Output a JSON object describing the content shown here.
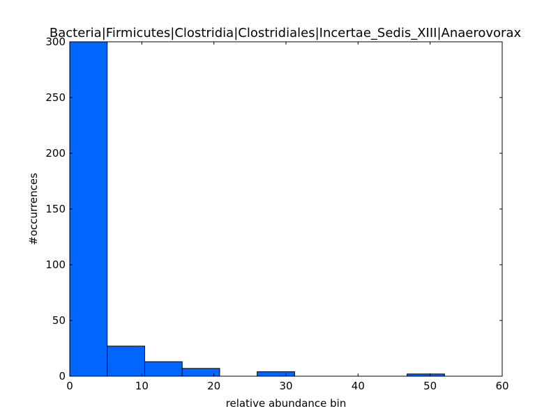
{
  "chart_data": {
    "type": "bar",
    "title": "Bacteria|Firmicutes|Clostridia|Clostridiales|Incertae_Sedis_XIII|Anaerovorax",
    "xlabel": "relative abundance bin",
    "ylabel": "#occurrences",
    "xlim": [
      0,
      60
    ],
    "ylim": [
      0,
      300
    ],
    "xticks": [
      0,
      10,
      20,
      30,
      40,
      50,
      60
    ],
    "yticks": [
      0,
      50,
      100,
      150,
      200,
      250,
      300
    ],
    "bins": [
      {
        "x0": 0.0,
        "x1": 5.2,
        "value": 300
      },
      {
        "x0": 5.2,
        "x1": 10.4,
        "value": 27
      },
      {
        "x0": 10.4,
        "x1": 15.6,
        "value": 13
      },
      {
        "x0": 15.6,
        "x1": 20.8,
        "value": 7
      },
      {
        "x0": 20.8,
        "x1": 26.0,
        "value": 0
      },
      {
        "x0": 26.0,
        "x1": 31.2,
        "value": 4
      },
      {
        "x0": 31.2,
        "x1": 36.4,
        "value": 0
      },
      {
        "x0": 36.4,
        "x1": 41.6,
        "value": 0
      },
      {
        "x0": 41.6,
        "x1": 46.8,
        "value": 0
      },
      {
        "x0": 46.8,
        "x1": 52.0,
        "value": 2
      }
    ],
    "bar_color": "#0066ff",
    "edge_color": "#000000",
    "grid": false,
    "legend": false
  }
}
